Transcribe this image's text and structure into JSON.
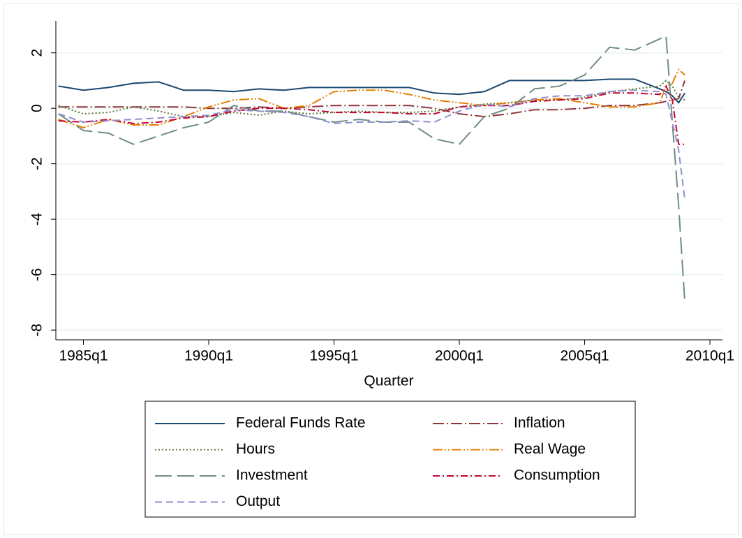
{
  "chart_data": {
    "type": "line",
    "xlabel": "Quarter",
    "x": [
      1984,
      1985,
      1986,
      1987,
      1988,
      1989,
      1990,
      1991,
      1992,
      1993,
      1994,
      1995,
      1996,
      1997,
      1998,
      1999,
      2000,
      2001,
      2002,
      2003,
      2004,
      2005,
      2006,
      2007,
      2008,
      2008.25,
      2008.5,
      2008.75,
      2009
    ],
    "xlim": [
      1983.9,
      2010.5
    ],
    "xticks": [
      {
        "value": 1985,
        "label": "1985q1"
      },
      {
        "value": 1990,
        "label": "1990q1"
      },
      {
        "value": 1995,
        "label": "1995q1"
      },
      {
        "value": 2000,
        "label": "2000q1"
      },
      {
        "value": 2005,
        "label": "2005q1"
      },
      {
        "value": 2010,
        "label": "2010q1"
      }
    ],
    "ylim": [
      -8.35,
      3.15
    ],
    "yticks": [
      -8,
      -6,
      -4,
      -2,
      0,
      2
    ],
    "grid": true,
    "series": [
      {
        "name": "Federal Funds Rate",
        "color": "#1a476f",
        "dash": "none",
        "values": [
          0.8,
          0.65,
          0.75,
          0.9,
          0.95,
          0.65,
          0.65,
          0.6,
          0.7,
          0.65,
          0.75,
          0.75,
          0.75,
          0.75,
          0.75,
          0.55,
          0.5,
          0.6,
          1.0,
          1.0,
          1.0,
          1.0,
          1.05,
          1.05,
          0.7,
          0.6,
          0.45,
          0.2,
          0.55
        ]
      },
      {
        "name": "Inflation",
        "color": "#90353b",
        "dash": "16,4,2,4",
        "values": [
          0.05,
          0.05,
          0.05,
          0.05,
          0.05,
          0.05,
          0,
          0,
          0.05,
          0,
          0.05,
          0.1,
          0.1,
          0.1,
          0.1,
          0,
          -0.2,
          -0.3,
          -0.2,
          -0.05,
          -0.05,
          0,
          0.1,
          0.1,
          0.2,
          0.25,
          0.3,
          0.35,
          1.0
        ]
      },
      {
        "name": "Hours",
        "color": "#55752f",
        "dash": "2,3",
        "values": [
          0.1,
          -0.2,
          -0.15,
          0.05,
          -0.1,
          -0.3,
          -0.3,
          -0.15,
          -0.25,
          -0.1,
          -0.2,
          -0.15,
          -0.1,
          -0.15,
          -0.15,
          -0.1,
          0.05,
          0.15,
          0.2,
          0.3,
          0.3,
          0.4,
          0.6,
          0.7,
          0.8,
          1.0,
          0.8,
          0.4,
          0.3
        ]
      },
      {
        "name": "Real Wage",
        "color": "#e37e00",
        "dash": "14,3,2,3,2,3",
        "values": [
          -0.4,
          -0.7,
          -0.4,
          -0.6,
          -0.6,
          -0.3,
          0.05,
          0.3,
          0.35,
          0,
          0.1,
          0.6,
          0.65,
          0.65,
          0.5,
          0.3,
          0.2,
          0.1,
          0.2,
          0.3,
          0.35,
          0.2,
          0.05,
          0.05,
          0.2,
          0.8,
          0.9,
          1.4,
          1.2
        ]
      },
      {
        "name": "Investment",
        "color": "#6e8e84",
        "dash": "24,8",
        "values": [
          -0.2,
          -0.8,
          -0.9,
          -1.3,
          -1.0,
          -0.7,
          -0.5,
          0.1,
          -0.1,
          -0.1,
          -0.3,
          -0.5,
          -0.4,
          -0.5,
          -0.5,
          -1.1,
          -1.3,
          -0.3,
          0.0,
          0.7,
          0.8,
          1.2,
          2.2,
          2.1,
          2.5,
          2.6,
          -0.5,
          -3.5,
          -7.0
        ]
      },
      {
        "name": "Consumption",
        "color": "#c10534",
        "dash": "10,4,2,4",
        "values": [
          -0.45,
          -0.5,
          -0.4,
          -0.55,
          -0.5,
          -0.35,
          -0.3,
          -0.1,
          0,
          0,
          -0.05,
          -0.15,
          -0.15,
          -0.15,
          -0.2,
          -0.2,
          0.05,
          0.1,
          0.1,
          0.25,
          0.3,
          0.35,
          0.55,
          0.55,
          0.5,
          0.8,
          0.3,
          -1.3,
          -1.3
        ]
      },
      {
        "name": "Output",
        "color": "#938dd2",
        "dash": "10,6",
        "values": [
          -0.2,
          -0.5,
          -0.45,
          -0.4,
          -0.35,
          -0.3,
          -0.25,
          -0.05,
          -0.1,
          -0.15,
          -0.3,
          -0.55,
          -0.5,
          -0.5,
          -0.45,
          -0.5,
          -0.1,
          0.15,
          0.05,
          0.35,
          0.45,
          0.45,
          0.6,
          0.65,
          0.6,
          0.5,
          -0.5,
          -1.5,
          -3.3
        ]
      }
    ]
  }
}
